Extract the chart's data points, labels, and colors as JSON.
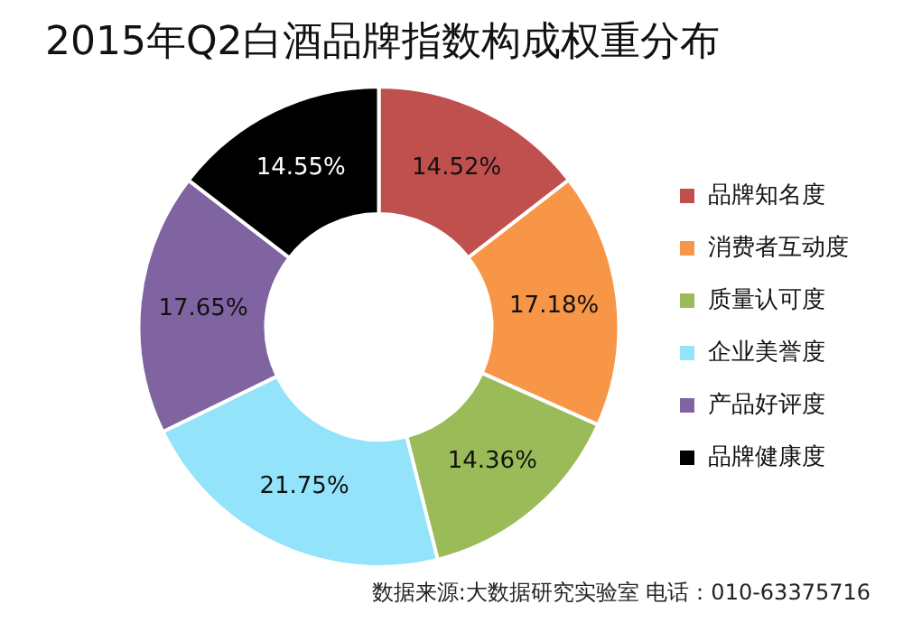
{
  "chart_data": {
    "type": "donut",
    "title": "2015年Q2白酒品牌指数构成权重分布",
    "categories": [
      "品牌知名度",
      "消费者互动度",
      "质量认可度",
      "企业美誉度",
      "产品好评度",
      "品牌健康度"
    ],
    "values": [
      14.52,
      17.18,
      14.36,
      21.75,
      17.65,
      14.55
    ],
    "value_labels": [
      "14.52%",
      "17.18%",
      "14.36%",
      "21.75%",
      "17.65%",
      "14.55%"
    ],
    "colors": [
      "#c0504d",
      "#f79646",
      "#9bbb59",
      "#93e3fb",
      "#8064a2",
      "#000000"
    ],
    "legend": "right",
    "annotations": [
      "数据来源:大数据研究实验室  电话：010-63375716"
    ]
  }
}
